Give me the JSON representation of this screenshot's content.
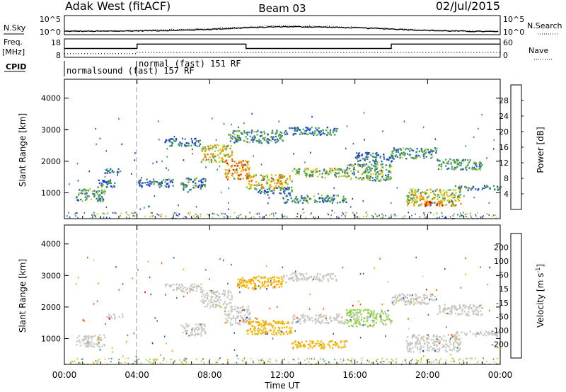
{
  "header": {
    "station": "Adak West (fitACF)",
    "beam": "Beam 03",
    "date": "02/Jul/2015"
  },
  "colors": {
    "power": [
      "#1f2fe0",
      "#2a64b8",
      "#3a8a6a",
      "#46a84a",
      "#b7cf38",
      "#f6b400",
      "#f07a00",
      "#e43300",
      "#e00000"
    ],
    "velocity": [
      "#e00000",
      "#f05a00",
      "#f39200",
      "#f6b400",
      "#c8c8c0",
      "#8cd23c",
      "#3a8a6a",
      "#2a64b8",
      "#1f2fe0"
    ]
  },
  "chart_data": [
    {
      "type": "line",
      "name": "nsky-nsearch",
      "left_label": "N.Sky",
      "right_label": "N.Search",
      "left_ticks": [
        "10^5",
        "10^0"
      ],
      "right_ticks": [
        "10^5",
        "10^0"
      ],
      "x": [
        0,
        2,
        4,
        6,
        8,
        10,
        12,
        14,
        16,
        18,
        20,
        22,
        24
      ],
      "nsky": [
        0.9,
        0.9,
        1.0,
        1.1,
        1.4,
        1.8,
        2.1,
        2.0,
        1.8,
        1.5,
        1.1,
        0.9,
        0.8
      ],
      "nsearch": [
        0.9,
        0.95,
        1.1,
        1.3,
        1.6,
        2.0,
        2.3,
        2.2,
        1.9,
        1.6,
        1.2,
        0.95,
        0.85
      ],
      "ylim": [
        0,
        5
      ]
    },
    {
      "type": "line",
      "name": "freq-nave",
      "left_label": "Freq.",
      "left_unit": "[MHz]",
      "right_label": "Nave",
      "left_ticks": [
        "18",
        "8"
      ],
      "right_ticks": [
        "60",
        "0"
      ],
      "freq_steps": [
        {
          "from": 0,
          "to": 4,
          "value": 12.8
        },
        {
          "from": 4,
          "to": 10,
          "value": 15.2
        },
        {
          "from": 10,
          "to": 18,
          "value": 12.8
        },
        {
          "from": 18,
          "to": 24,
          "value": 15.2
        }
      ],
      "nave_steps": [
        {
          "from": 0,
          "to": 4,
          "value": 12
        },
        {
          "from": 4,
          "to": 24,
          "value": 16
        }
      ],
      "freq_ylim": [
        8,
        18
      ],
      "nave_ylim": [
        0,
        60
      ]
    },
    {
      "type": "heatmap",
      "name": "cpid",
      "label": "CPID",
      "annotations": [
        {
          "from": 0,
          "to": 4,
          "text": "normalsound (fast) 157 RF"
        },
        {
          "from": 4,
          "to": 24,
          "text": "normal (fast)  151 RF"
        }
      ]
    },
    {
      "type": "heatmap",
      "name": "power",
      "ylabel": "Slant Range [km]",
      "yticks": [
        1000,
        2000,
        3000,
        4000
      ],
      "ylim": [
        180,
        4600
      ],
      "xlim": [
        0,
        24
      ],
      "colorbar_label": "Power [dB]",
      "colorbar_ticks": [
        4,
        8,
        12,
        16,
        20,
        24,
        28
      ],
      "colorbar_range": [
        0,
        32
      ],
      "bands": [
        {
          "t0": 0.6,
          "t1": 2.2,
          "r0": 750,
          "r1": 1150,
          "p": 10
        },
        {
          "t0": 1.8,
          "t1": 2.8,
          "r0": 1200,
          "r1": 1450,
          "p": 8
        },
        {
          "t0": 2.2,
          "t1": 3.2,
          "r0": 1650,
          "r1": 1800,
          "p": 7
        },
        {
          "t0": 4.0,
          "t1": 6.0,
          "r0": 1200,
          "r1": 1450,
          "p": 6
        },
        {
          "t0": 6.4,
          "t1": 7.8,
          "r0": 1100,
          "r1": 1500,
          "p": 9
        },
        {
          "t0": 5.5,
          "t1": 7.5,
          "r0": 2500,
          "r1": 2750,
          "p": 7
        },
        {
          "t0": 7.5,
          "t1": 9.2,
          "r0": 2000,
          "r1": 2550,
          "p": 18
        },
        {
          "t0": 8.8,
          "t1": 10.2,
          "r0": 1450,
          "r1": 2050,
          "p": 22
        },
        {
          "t0": 10.0,
          "t1": 12.5,
          "r0": 1150,
          "r1": 1600,
          "p": 18
        },
        {
          "t0": 12.5,
          "t1": 15.5,
          "r0": 1500,
          "r1": 1800,
          "p": 14
        },
        {
          "t0": 15.5,
          "t1": 18.0,
          "r0": 1400,
          "r1": 1950,
          "p": 12
        },
        {
          "t0": 9.0,
          "t1": 12.0,
          "r0": 2600,
          "r1": 3000,
          "p": 9
        },
        {
          "t0": 12.0,
          "t1": 15.0,
          "r0": 2850,
          "r1": 3100,
          "p": 7
        },
        {
          "t0": 12.0,
          "t1": 15.5,
          "r0": 700,
          "r1": 950,
          "p": 9
        },
        {
          "t0": 10.5,
          "t1": 12.5,
          "r0": 1000,
          "r1": 1200,
          "p": 7
        },
        {
          "t0": 18.0,
          "t1": 20.5,
          "r0": 2100,
          "r1": 2450,
          "p": 10
        },
        {
          "t0": 20.5,
          "t1": 23.0,
          "r0": 1750,
          "r1": 2100,
          "p": 10
        },
        {
          "t0": 18.8,
          "t1": 21.8,
          "r0": 600,
          "r1": 1150,
          "p": 16
        },
        {
          "t0": 19.8,
          "t1": 20.8,
          "r0": 600,
          "r1": 800,
          "p": 26
        },
        {
          "t0": 21.5,
          "t1": 24.0,
          "r0": 1100,
          "r1": 1250,
          "p": 8
        },
        {
          "t0": 16.0,
          "t1": 18.0,
          "r0": 2000,
          "r1": 2300,
          "p": 7
        }
      ]
    },
    {
      "type": "heatmap",
      "name": "velocity",
      "ylabel": "Slant Range [km]",
      "yticks": [
        1000,
        2000,
        3000,
        4000
      ],
      "ylim": [
        180,
        4600
      ],
      "xlim": [
        0,
        24
      ],
      "colorbar_label": "Velocity [m s",
      "colorbar_label_exp": "-1",
      "colorbar_label_tail": "]",
      "colorbar_ticks": [
        "-200",
        "-100",
        "-50",
        "-15",
        "15",
        "50",
        "100",
        "200"
      ],
      "bands": [
        {
          "t0": 0.6,
          "t1": 2.2,
          "r0": 750,
          "r1": 1150,
          "v": 0
        },
        {
          "t0": 2.2,
          "t1": 3.2,
          "r0": 1650,
          "r1": 1800,
          "v": 0
        },
        {
          "t0": 6.4,
          "t1": 7.8,
          "r0": 1100,
          "r1": 1500,
          "v": 0
        },
        {
          "t0": 5.5,
          "t1": 7.5,
          "r0": 2500,
          "r1": 2750,
          "v": 0
        },
        {
          "t0": 7.5,
          "t1": 9.2,
          "r0": 2000,
          "r1": 2550,
          "v": 0
        },
        {
          "t0": 8.8,
          "t1": 10.2,
          "r0": 1450,
          "r1": 2050,
          "v": 0
        },
        {
          "t0": 10.0,
          "t1": 12.5,
          "r0": 1150,
          "r1": 1600,
          "v": -40
        },
        {
          "t0": 12.5,
          "t1": 15.5,
          "r0": 1500,
          "r1": 1800,
          "v": 0
        },
        {
          "t0": 15.5,
          "t1": 18.0,
          "r0": 1400,
          "r1": 1950,
          "v": 20
        },
        {
          "t0": 9.5,
          "t1": 12.0,
          "r0": 2600,
          "r1": 3000,
          "v": -40
        },
        {
          "t0": 12.0,
          "t1": 15.0,
          "r0": 2850,
          "r1": 3100,
          "v": 0
        },
        {
          "t0": 12.5,
          "t1": 15.5,
          "r0": 700,
          "r1": 950,
          "v": -40
        },
        {
          "t0": 18.0,
          "t1": 20.5,
          "r0": 2100,
          "r1": 2450,
          "v": 0
        },
        {
          "t0": 20.5,
          "t1": 23.0,
          "r0": 1750,
          "r1": 2100,
          "v": 0
        },
        {
          "t0": 18.8,
          "t1": 21.8,
          "r0": 600,
          "r1": 1150,
          "v": 0
        },
        {
          "t0": 21.5,
          "t1": 24.0,
          "r0": 1100,
          "r1": 1250,
          "v": 0
        }
      ]
    }
  ],
  "x_axis": {
    "label": "Time UT",
    "ticks": [
      "00:00",
      "04:00",
      "08:00",
      "12:00",
      "16:00",
      "20:00",
      "00:00"
    ],
    "tick_hours": [
      0,
      4,
      8,
      12,
      16,
      20,
      24
    ]
  }
}
